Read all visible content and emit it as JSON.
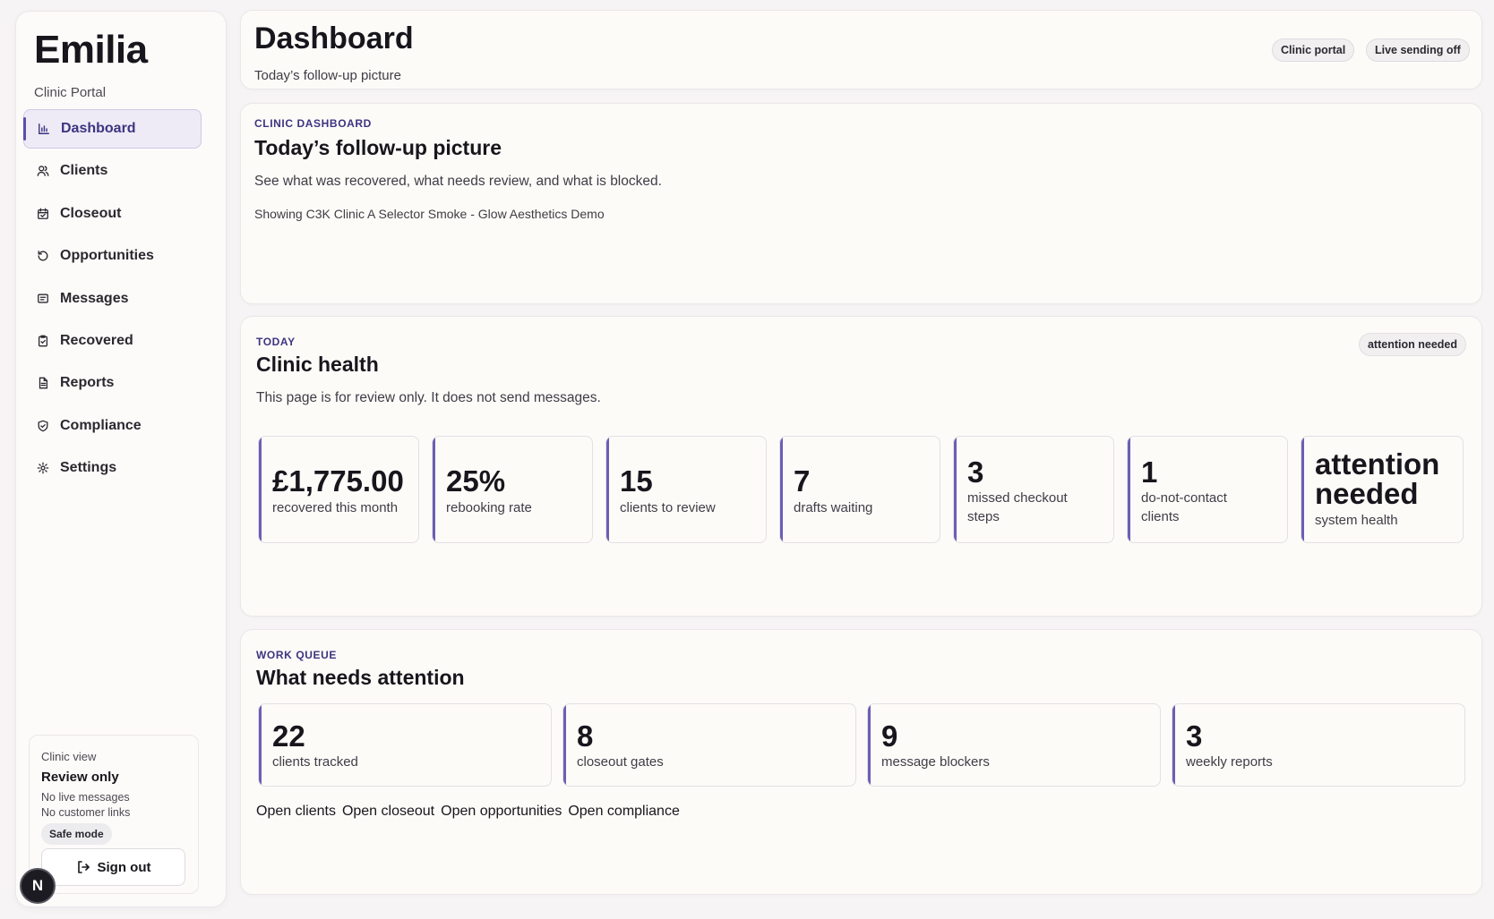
{
  "sidebar": {
    "brand": "Emilia",
    "brand_sub": "Clinic Portal",
    "items": [
      {
        "label": "Dashboard",
        "icon": "bar-chart-icon",
        "active": true
      },
      {
        "label": "Clients",
        "icon": "users-icon"
      },
      {
        "label": "Closeout",
        "icon": "calendar-icon"
      },
      {
        "label": "Opportunities",
        "icon": "refresh-icon"
      },
      {
        "label": "Messages",
        "icon": "message-icon"
      },
      {
        "label": "Recovered",
        "icon": "clipboard-check-icon"
      },
      {
        "label": "Reports",
        "icon": "document-icon"
      },
      {
        "label": "Compliance",
        "icon": "shield-icon"
      },
      {
        "label": "Settings",
        "icon": "gear-icon"
      }
    ],
    "view": {
      "label": "Clinic view",
      "title": "Review only",
      "line1": "No live messages",
      "line2": "No customer links",
      "badge": "Safe mode",
      "signout": "Sign out"
    },
    "avatar": "N"
  },
  "header": {
    "title": "Dashboard",
    "subtitle": "Today’s follow-up picture",
    "pills": [
      "Clinic portal",
      "Live sending off"
    ]
  },
  "hero": {
    "eyebrow": "CLINIC DASHBOARD",
    "title": "Today’s follow-up picture",
    "text": "See what was recovered, what needs review, and what is blocked.",
    "showing": "Showing C3K Clinic A Selector Smoke - Glow Aesthetics Demo"
  },
  "health": {
    "eyebrow": "TODAY",
    "title": "Clinic health",
    "badge": "attention needed",
    "text": "This page is for review only. It does not send messages.",
    "metrics": [
      {
        "value": "£1,775.00",
        "label": "recovered this month"
      },
      {
        "value": "25%",
        "label": "rebooking rate"
      },
      {
        "value": "15",
        "label": "clients to review"
      },
      {
        "value": "7",
        "label": "drafts waiting"
      },
      {
        "value": "3",
        "label": "missed checkout steps"
      },
      {
        "value": "1",
        "label": "do-not-contact clients"
      },
      {
        "value": "attention needed",
        "label": "system health"
      }
    ]
  },
  "queue": {
    "eyebrow": "WORK QUEUE",
    "title": "What needs attention",
    "metrics": [
      {
        "value": "22",
        "label": "clients tracked"
      },
      {
        "value": "8",
        "label": "closeout gates"
      },
      {
        "value": "9",
        "label": "message blockers"
      },
      {
        "value": "3",
        "label": "weekly reports"
      }
    ],
    "links": [
      "Open clients",
      "Open closeout",
      "Open opportunities",
      "Open compliance"
    ]
  },
  "colors": {
    "accent": "#5b4fa6",
    "accent_text": "#3d3480",
    "background": "#f6f4f5",
    "card": "#fdfbf8"
  }
}
